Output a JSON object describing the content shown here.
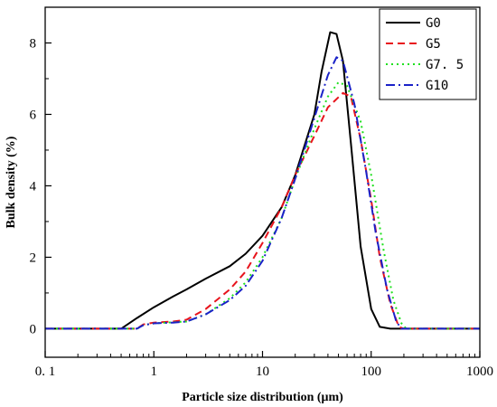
{
  "chart_data": {
    "type": "line",
    "xlabel": "Particle size distribution (μm)",
    "ylabel": "Bulk density (%)",
    "xscale": "log",
    "xlim": [
      0.1,
      1000
    ],
    "ylim": [
      -0.8,
      9
    ],
    "x_ticks": [
      {
        "value": 0.1,
        "label": "0. 1"
      },
      {
        "value": 1,
        "label": "1"
      },
      {
        "value": 10,
        "label": "10"
      },
      {
        "value": 100,
        "label": "100"
      },
      {
        "value": 1000,
        "label": "1000"
      }
    ],
    "y_ticks": [
      0,
      2,
      4,
      6,
      8
    ],
    "grid": false,
    "legend": "top-right",
    "series": [
      {
        "name": "G0",
        "color": "#000000",
        "dash": "solid",
        "points": [
          [
            0.1,
            0
          ],
          [
            0.5,
            0
          ],
          [
            0.7,
            0.3
          ],
          [
            1,
            0.6
          ],
          [
            1.5,
            0.9
          ],
          [
            2,
            1.1
          ],
          [
            3,
            1.4
          ],
          [
            5,
            1.75
          ],
          [
            7,
            2.1
          ],
          [
            10,
            2.6
          ],
          [
            15,
            3.4
          ],
          [
            20,
            4.3
          ],
          [
            30,
            6.0
          ],
          [
            35,
            7.2
          ],
          [
            42,
            8.3
          ],
          [
            48,
            8.25
          ],
          [
            55,
            7.5
          ],
          [
            65,
            5.2
          ],
          [
            80,
            2.3
          ],
          [
            100,
            0.55
          ],
          [
            120,
            0.05
          ],
          [
            150,
            0
          ],
          [
            1000,
            0
          ]
        ]
      },
      {
        "name": "G5",
        "color": "#e8141c",
        "dash": "8,5",
        "points": [
          [
            0.1,
            0
          ],
          [
            0.7,
            0
          ],
          [
            0.8,
            0.12
          ],
          [
            1,
            0.17
          ],
          [
            1.5,
            0.2
          ],
          [
            2,
            0.25
          ],
          [
            3,
            0.55
          ],
          [
            5,
            1.1
          ],
          [
            7,
            1.6
          ],
          [
            10,
            2.4
          ],
          [
            15,
            3.4
          ],
          [
            20,
            4.3
          ],
          [
            30,
            5.4
          ],
          [
            40,
            6.2
          ],
          [
            55,
            6.6
          ],
          [
            65,
            6.5
          ],
          [
            80,
            5.3
          ],
          [
            100,
            3.6
          ],
          [
            120,
            2.0
          ],
          [
            150,
            0.7
          ],
          [
            180,
            0.05
          ],
          [
            200,
            0
          ],
          [
            1000,
            0
          ]
        ]
      },
      {
        "name": "G7. 5",
        "color": "#1ee01e",
        "dash": "2,4",
        "points": [
          [
            0.1,
            0
          ],
          [
            0.7,
            0
          ],
          [
            0.8,
            0.1
          ],
          [
            1,
            0.15
          ],
          [
            1.5,
            0.18
          ],
          [
            2,
            0.2
          ],
          [
            3,
            0.4
          ],
          [
            5,
            0.85
          ],
          [
            7,
            1.3
          ],
          [
            10,
            2.0
          ],
          [
            15,
            3.1
          ],
          [
            20,
            4.2
          ],
          [
            30,
            5.6
          ],
          [
            40,
            6.5
          ],
          [
            50,
            6.9
          ],
          [
            60,
            6.8
          ],
          [
            80,
            5.8
          ],
          [
            100,
            4.3
          ],
          [
            130,
            2.2
          ],
          [
            160,
            0.8
          ],
          [
            190,
            0.15
          ],
          [
            210,
            0
          ],
          [
            1000,
            0
          ]
        ]
      },
      {
        "name": "G10",
        "color": "#1a22c8",
        "dash": "10,4,2,4",
        "points": [
          [
            0.1,
            0
          ],
          [
            0.7,
            0
          ],
          [
            0.8,
            0.1
          ],
          [
            1,
            0.15
          ],
          [
            1.5,
            0.17
          ],
          [
            2,
            0.2
          ],
          [
            3,
            0.4
          ],
          [
            5,
            0.8
          ],
          [
            7,
            1.2
          ],
          [
            10,
            1.9
          ],
          [
            15,
            3.1
          ],
          [
            20,
            4.2
          ],
          [
            30,
            5.9
          ],
          [
            40,
            7.1
          ],
          [
            48,
            7.6
          ],
          [
            55,
            7.5
          ],
          [
            70,
            6.3
          ],
          [
            90,
            4.4
          ],
          [
            110,
            2.7
          ],
          [
            140,
            1.1
          ],
          [
            170,
            0.2
          ],
          [
            190,
            0
          ],
          [
            1000,
            0
          ]
        ]
      }
    ]
  }
}
